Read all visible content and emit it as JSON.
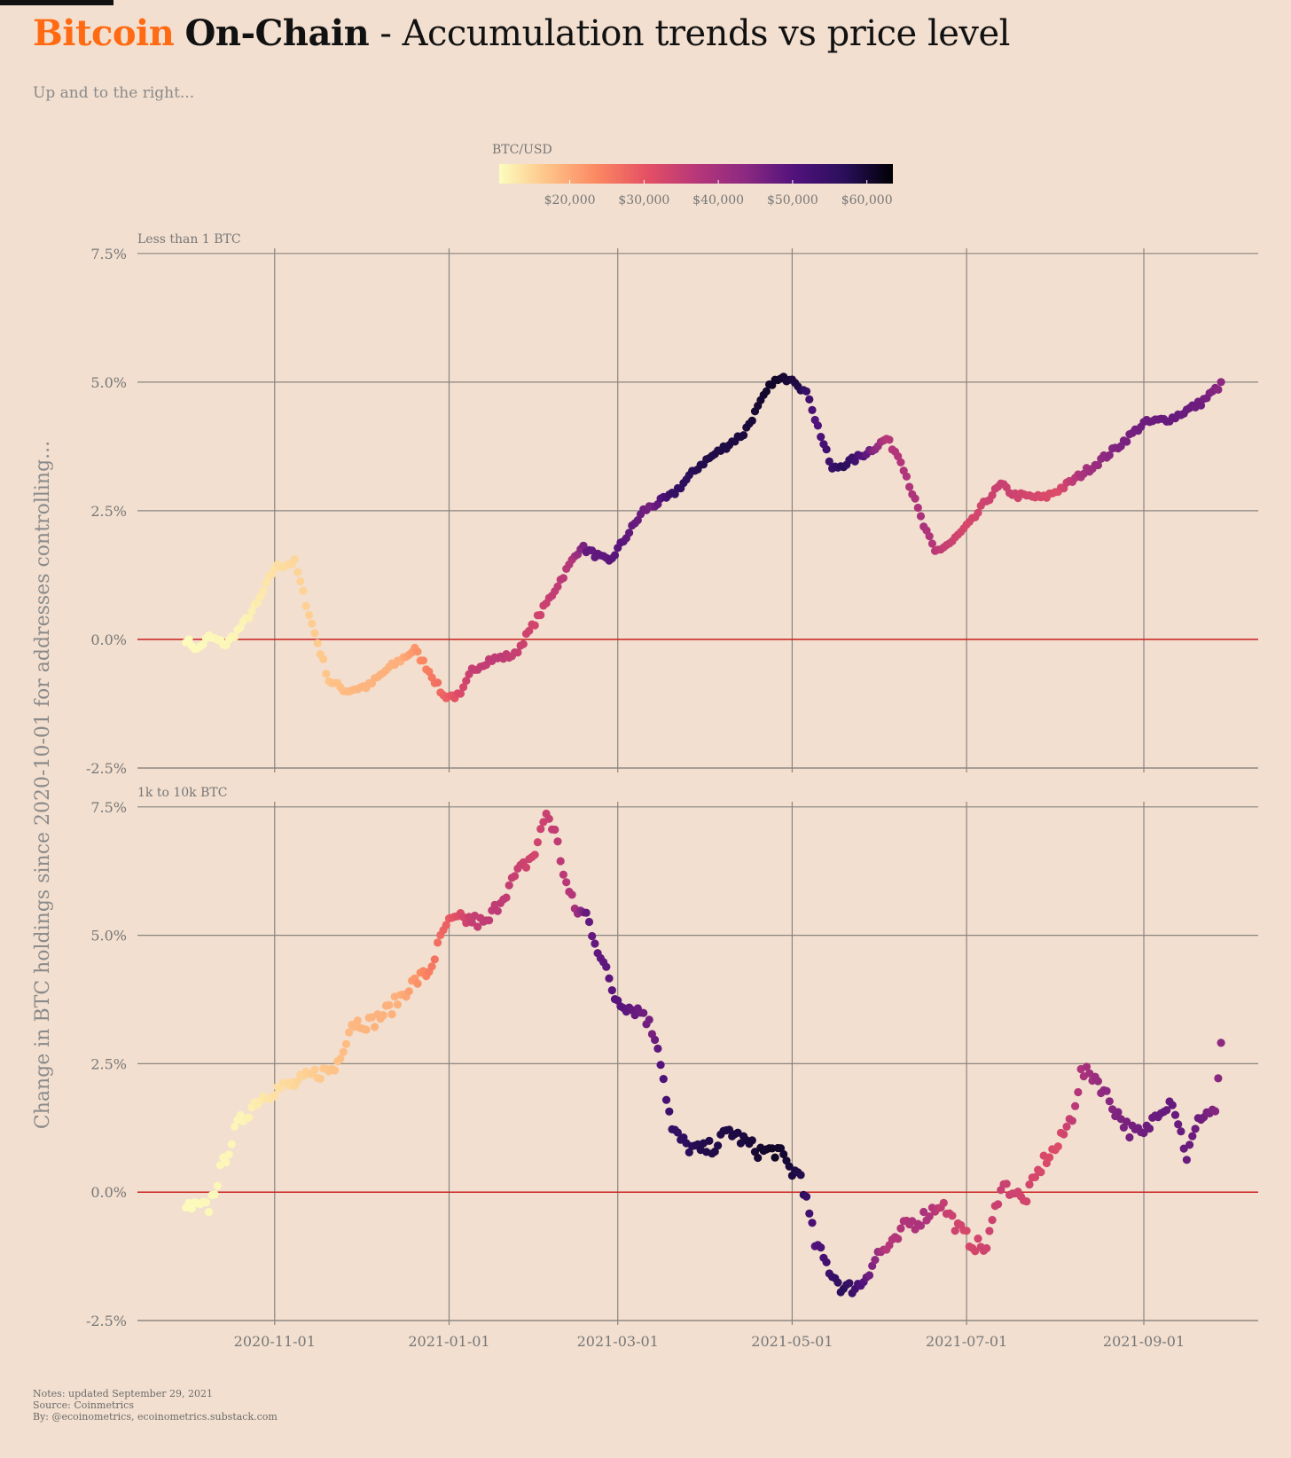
{
  "header": {
    "brand": "Bitcoin",
    "strong": "On-Chain",
    "rest": " - Accumulation trends vs price level",
    "subtitle": "Up and to the right..."
  },
  "legend": {
    "title": "BTC/USD",
    "ticks": [
      "$20,000",
      "$30,000",
      "$40,000",
      "$50,000",
      "$60,000"
    ],
    "tick_values": [
      20000,
      30000,
      40000,
      50000,
      60000
    ],
    "range": [
      10500,
      63500
    ],
    "colormap": [
      "#fcfdbf",
      "#fec287",
      "#fb8761",
      "#e55064",
      "#b73779",
      "#8c2981",
      "#51127c",
      "#2a0f5c",
      "#000004"
    ]
  },
  "notes": [
    "Notes: updated September 29, 2021",
    "Source: Coinmetrics",
    "By: @ecoinometrics, ecoinometrics.substack.com"
  ],
  "chart_data": {
    "type": "scatter",
    "ylabel": "Change in BTC holdings since 2020-10-01 for addresses controlling...",
    "x_start": "2020-10-01",
    "x_ticks": [
      "2020-11-01",
      "2021-01-01",
      "2021-03-01",
      "2021-05-01",
      "2021-07-01",
      "2021-09-01"
    ],
    "xlim_days": [
      -17,
      375
    ],
    "ylim": [
      -2.5,
      7.6
    ],
    "y_ticks": [
      "-2.5%",
      "0.0%",
      "2.5%",
      "5.0%",
      "7.5%"
    ],
    "y_tick_values": [
      -2.5,
      0,
      2.5,
      5.0,
      7.5
    ],
    "zero_line_color": "#cc2222",
    "price_knots": {
      "days": [
        0,
        20,
        31,
        45,
        60,
        75,
        92,
        100,
        110,
        122,
        135,
        140,
        152,
        163,
        170,
        180,
        195,
        206,
        215,
        220,
        230,
        237,
        245,
        258,
        265,
        273,
        285,
        295,
        305,
        315,
        325,
        335,
        345,
        355,
        363
      ],
      "usd": [
        10800,
        11500,
        13800,
        16000,
        18500,
        19200,
        29000,
        35000,
        36000,
        33000,
        37500,
        48000,
        49500,
        46000,
        55000,
        58000,
        59000,
        61000,
        58000,
        50000,
        57000,
        50000,
        37000,
        39000,
        35000,
        32500,
        34500,
        33000,
        31500,
        40000,
        45000,
        47000,
        48000,
        47000,
        43000
      ]
    },
    "panels": [
      {
        "label": "Less than 1 BTC",
        "knots": {
          "days": [
            0,
            4,
            8,
            14,
            20,
            25,
            31,
            38,
            44,
            50,
            56,
            64,
            70,
            80,
            86,
            90,
            96,
            100,
            106,
            115,
            125,
            138,
            148,
            160,
            170,
            180,
            195,
            205,
            212,
            218,
            220,
            223,
            226,
            234,
            240,
            245,
            250,
            258,
            262,
            268,
            275,
            280,
            285,
            290,
            300,
            308,
            318,
            325,
            335,
            345,
            355,
            362
          ],
          "values": [
            0.0,
            -0.2,
            0.05,
            -0.1,
            0.3,
            0.7,
            1.4,
            1.5,
            0.3,
            -0.8,
            -1.0,
            -0.9,
            -0.6,
            -0.2,
            -0.7,
            -1.1,
            -1.1,
            -0.6,
            -0.4,
            -0.3,
            0.6,
            1.8,
            1.5,
            2.5,
            2.8,
            3.4,
            4.0,
            5.0,
            5.1,
            4.7,
            4.3,
            3.8,
            3.3,
            3.5,
            3.7,
            3.9,
            3.5,
            2.2,
            1.7,
            1.9,
            2.3,
            2.7,
            3.0,
            2.8,
            2.75,
            3.0,
            3.4,
            3.7,
            4.2,
            4.3,
            4.6,
            4.95
          ]
        }
      },
      {
        "label": "1k to 10k BTC",
        "knots": {
          "days": [
            0,
            3,
            8,
            12,
            18,
            25,
            31,
            38,
            45,
            52,
            58,
            65,
            72,
            78,
            85,
            91,
            95,
            100,
            105,
            110,
            116,
            122,
            126,
            129,
            133,
            136,
            140,
            145,
            150,
            155,
            160,
            165,
            170,
            175,
            180,
            185,
            190,
            200,
            207,
            212,
            215,
            220,
            225,
            230,
            236,
            242,
            248,
            252,
            255,
            260,
            264,
            270,
            275,
            280,
            285,
            290,
            293,
            300,
            305,
            310,
            313,
            316,
            318,
            325,
            330,
            335,
            340,
            345,
            350,
            355,
            360,
            362
          ],
          "values": [
            -0.3,
            -0.3,
            -0.3,
            0.4,
            1.3,
            1.8,
            2.0,
            2.1,
            2.3,
            2.4,
            3.3,
            3.3,
            3.6,
            4.0,
            4.3,
            5.2,
            5.3,
            5.3,
            5.2,
            5.7,
            6.2,
            6.6,
            7.4,
            7.0,
            6.0,
            5.5,
            5.4,
            4.6,
            3.8,
            3.6,
            3.5,
            2.9,
            1.2,
            0.9,
            0.8,
            0.9,
            1.2,
            0.8,
            0.8,
            0.4,
            0.35,
            -1.0,
            -1.5,
            -1.9,
            -1.8,
            -1.2,
            -1.0,
            -0.6,
            -0.6,
            -0.4,
            -0.2,
            -0.7,
            -1.0,
            -1.1,
            0.15,
            0.0,
            -0.2,
            0.6,
            0.9,
            1.5,
            2.3,
            2.3,
            2.25,
            1.6,
            1.2,
            1.1,
            1.6,
            1.8,
            0.7,
            1.5,
            1.6,
            2.8
          ]
        }
      }
    ]
  }
}
